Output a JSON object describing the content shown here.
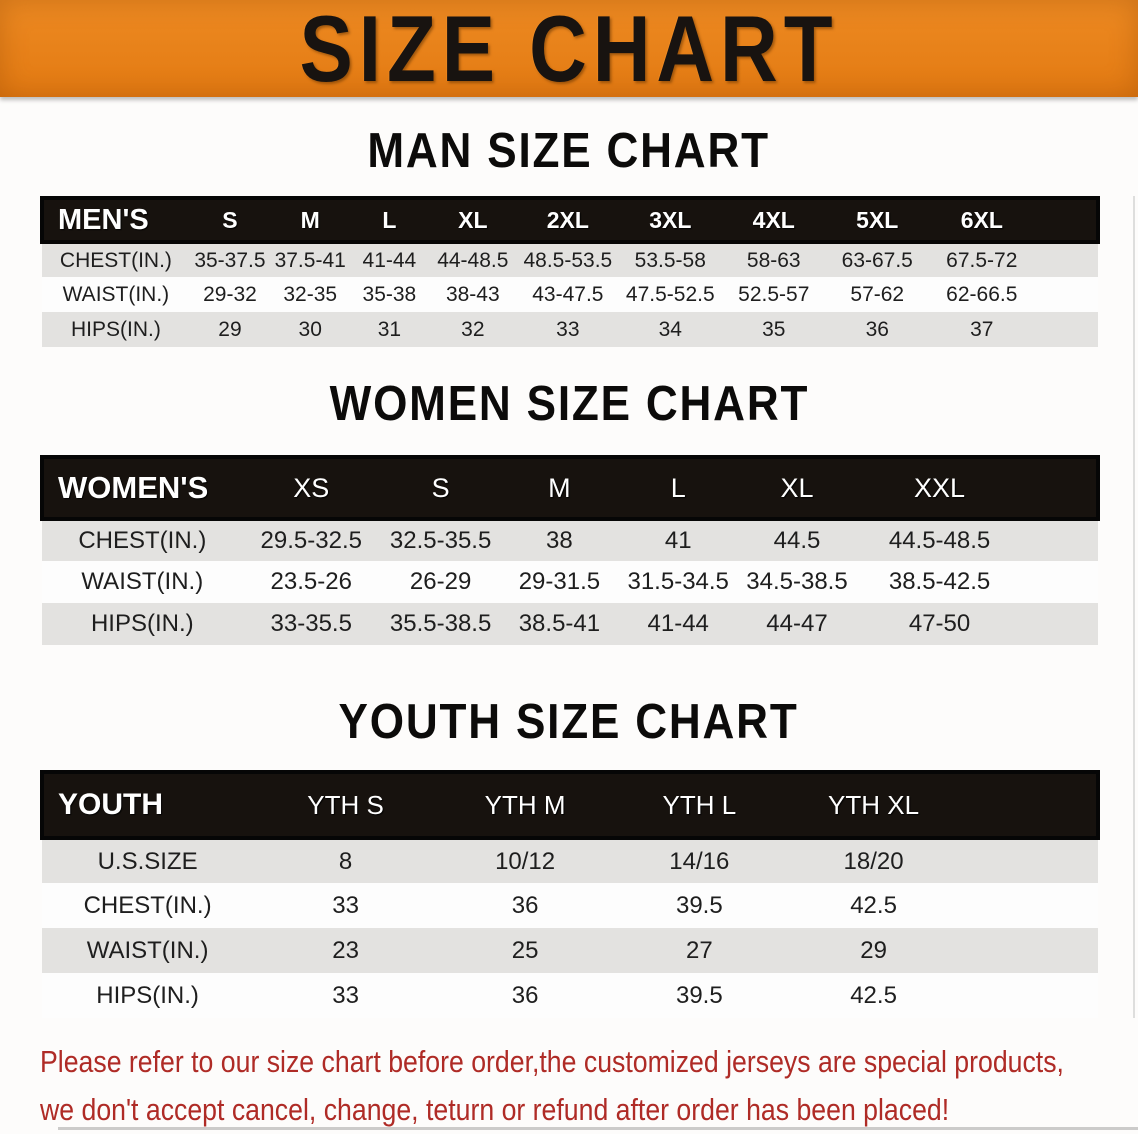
{
  "banner": {
    "title": "SIZE CHART"
  },
  "colors": {
    "banner_bg": "#ED8A22",
    "banner_bg_deep": "#E37A12",
    "header_bg": "#17120E",
    "stripe": "#E3E2E0",
    "accent_red": "#AF2B26"
  },
  "sections": [
    {
      "id": "men",
      "heading": "MAN SIZE CHART",
      "columns": [
        "MEN'S",
        "S",
        "M",
        "L",
        "XL",
        "2XL",
        "3XL",
        "4XL",
        "5XL",
        "6XL"
      ],
      "rows": [
        {
          "label": "CHEST(IN.)",
          "values": [
            "35-37.5",
            "37.5-41",
            "41-44",
            "44-48.5",
            "48.5-53.5",
            "53.5-58",
            "58-63",
            "63-67.5",
            "67.5-72"
          ]
        },
        {
          "label": "WAIST(IN.)",
          "values": [
            "29-32",
            "32-35",
            "35-38",
            "38-43",
            "43-47.5",
            "47.5-52.5",
            "52.5-57",
            "57-62",
            "62-66.5"
          ]
        },
        {
          "label": "HIPS(IN.)",
          "values": [
            "29",
            "30",
            "31",
            "32",
            "33",
            "34",
            "35",
            "36",
            "37"
          ]
        }
      ]
    },
    {
      "id": "women",
      "heading": "WOMEN SIZE CHART",
      "columns": [
        "WOMEN'S",
        "XS",
        "S",
        "M",
        "L",
        "XL",
        "XXL"
      ],
      "rows": [
        {
          "label": "CHEST(IN.)",
          "values": [
            "29.5-32.5",
            "32.5-35.5",
            "38",
            "41",
            "44.5",
            "44.5-48.5"
          ]
        },
        {
          "label": "WAIST(IN.)",
          "values": [
            "23.5-26",
            "26-29",
            "29-31.5",
            "31.5-34.5",
            "34.5-38.5",
            "38.5-42.5"
          ]
        },
        {
          "label": "HIPS(IN.)",
          "values": [
            "33-35.5",
            "35.5-38.5",
            "38.5-41",
            "41-44",
            "44-47",
            "47-50"
          ]
        }
      ]
    },
    {
      "id": "youth",
      "heading": "YOUTH SIZE CHART",
      "columns": [
        "YOUTH",
        "YTH S",
        "YTH M",
        "YTH L",
        "YTH XL"
      ],
      "rows": [
        {
          "label": "U.S.SIZE",
          "values": [
            "8",
            "10/12",
            "14/16",
            "18/20"
          ]
        },
        {
          "label": "CHEST(IN.)",
          "values": [
            "33",
            "36",
            "39.5",
            "42.5"
          ]
        },
        {
          "label": "WAIST(IN.)",
          "values": [
            "23",
            "25",
            "27",
            "29"
          ]
        },
        {
          "label": "HIPS(IN.)",
          "values": [
            "33",
            "36",
            "39.5",
            "42.5"
          ]
        }
      ]
    }
  ],
  "disclaimer": {
    "line1": "Please refer to our size chart before order,the customized jerseys are special products,",
    "line2": "we don't accept cancel, change, teturn or refund after order has been placed!"
  }
}
